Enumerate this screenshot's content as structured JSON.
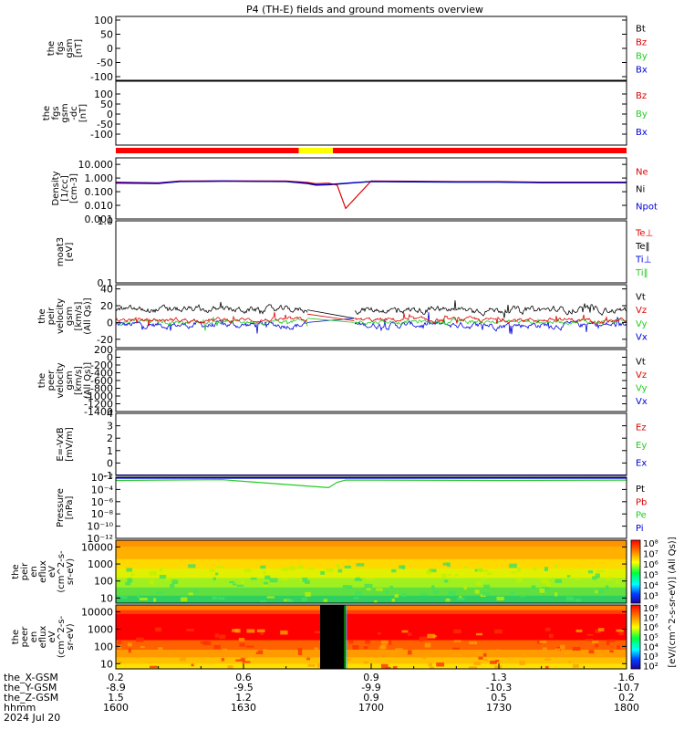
{
  "title": "P4 (TH-E) fields and ground moments overview",
  "colors": {
    "black": "#000000",
    "red": "#e00000",
    "green": "#22cc22",
    "blue": "#0000dd",
    "yellow": "#ffff00",
    "bar_red": "#ff0000"
  },
  "chart_data": [
    {
      "type": "line",
      "panel": "fgs_gsm",
      "ylabel": [
        "the",
        "fgs",
        "gsm",
        "[nT]"
      ],
      "ylim": [
        -100,
        100
      ],
      "yticks": [
        "100",
        "50",
        "0",
        "-50",
        "-100"
      ],
      "legend": [
        {
          "name": "Bt",
          "color": "#000000"
        },
        {
          "name": "Bz",
          "color": "#e00000"
        },
        {
          "name": "By",
          "color": "#22cc22"
        },
        {
          "name": "Bx",
          "color": "#0000dd"
        }
      ],
      "series": []
    },
    {
      "type": "line",
      "panel": "fgs_gsm_dc",
      "ylabel": [
        "the",
        "fgs",
        "gsm",
        "-dc",
        "[nT]"
      ],
      "ylim": [
        -130,
        130
      ],
      "yticks": [
        "100",
        "50",
        "0",
        "-50",
        "-100"
      ],
      "legend": [
        {
          "name": "Bz",
          "color": "#e00000"
        },
        {
          "name": "By",
          "color": "#22cc22"
        },
        {
          "name": "Bx",
          "color": "#0000dd"
        }
      ],
      "series": []
    },
    {
      "type": "bar",
      "panel": "mode_bar",
      "segments": [
        {
          "from": "1600",
          "to": "1643",
          "color": "#ff0000"
        },
        {
          "from": "1643",
          "to": "1651",
          "color": "#ffff00"
        },
        {
          "from": "1651",
          "to": "1800",
          "color": "#ff0000"
        }
      ]
    },
    {
      "type": "line",
      "panel": "density",
      "scale": "log",
      "ylabel": [
        "Density",
        "[1/cc]",
        "[cm-3]"
      ],
      "ylim": [
        0.001,
        30
      ],
      "yticks": [
        "10.000",
        "1.000",
        "0.100",
        "0.010",
        "0.001"
      ],
      "legend": [
        {
          "name": "Ne",
          "color": "#e00000"
        },
        {
          "name": "Ni",
          "color": "#000000"
        },
        {
          "name": "Npot",
          "color": "#0000dd"
        }
      ],
      "series": [
        {
          "color": "#000000",
          "x": [
            1600,
            1610,
            1615,
            1625,
            1640,
            1645,
            1647,
            1650,
            1700,
            1710,
            1720,
            1730,
            1740,
            1750,
            1800
          ],
          "y": [
            0.42,
            0.4,
            0.55,
            0.58,
            0.55,
            0.4,
            0.3,
            0.32,
            0.55,
            0.52,
            0.5,
            0.5,
            0.45,
            0.45,
            0.45
          ]
        },
        {
          "color": "#e00000",
          "x": [
            1600,
            1610,
            1615,
            1625,
            1640,
            1645,
            1647,
            1650,
            1652,
            1654,
            1700,
            1710,
            1720,
            1730,
            1740,
            1750,
            1800
          ],
          "y": [
            0.5,
            0.45,
            0.6,
            0.62,
            0.6,
            0.48,
            0.38,
            0.42,
            0.3,
            0.006,
            0.6,
            0.58,
            0.55,
            0.55,
            0.5,
            0.5,
            0.5
          ]
        },
        {
          "color": "#0000dd",
          "x": [
            1600,
            1610,
            1615,
            1625,
            1640,
            1645,
            1647,
            1650,
            1700,
            1710,
            1720,
            1730,
            1740,
            1750,
            1800
          ],
          "y": [
            0.44,
            0.42,
            0.56,
            0.6,
            0.57,
            0.42,
            0.32,
            0.34,
            0.57,
            0.54,
            0.52,
            0.52,
            0.47,
            0.47,
            0.47
          ]
        }
      ]
    },
    {
      "type": "line",
      "panel": "temperature",
      "scale": "log",
      "ylabel": [
        "moat3",
        "[eV]"
      ],
      "ylim": [
        0.1,
        1.0
      ],
      "yticks": [
        "1.0",
        "0.1"
      ],
      "legend": [
        {
          "name": "Te⊥",
          "color": "#e00000"
        },
        {
          "name": "Te‖",
          "color": "#000000"
        },
        {
          "name": "Ti⊥",
          "color": "#0000dd"
        },
        {
          "name": "Ti‖",
          "color": "#22cc22"
        }
      ],
      "series": []
    },
    {
      "type": "line",
      "panel": "peir_velocity",
      "ylabel": [
        "the",
        "peir",
        "velocity",
        "gsm",
        "[km/s]",
        "(All Qs)]"
      ],
      "ylim": [
        -30,
        45
      ],
      "yticks": [
        "40",
        "20",
        "0",
        "-20"
      ],
      "legend": [
        {
          "name": "Vt",
          "color": "#000000"
        },
        {
          "name": "Vz",
          "color": "#e00000"
        },
        {
          "name": "Vy",
          "color": "#22cc22"
        },
        {
          "name": "Vx",
          "color": "#0000dd"
        }
      ],
      "series": [
        {
          "name": "Vt",
          "color": "#000000",
          "mean": 15,
          "amp": 12,
          "gap": [
            1645,
            1656
          ],
          "gap_from": 15,
          "gap_to": 5
        },
        {
          "name": "Vz",
          "color": "#e00000",
          "mean": 3,
          "amp": 8,
          "gap": [
            1645,
            1656
          ],
          "gap_from": 10,
          "gap_to": 2
        },
        {
          "name": "Vy",
          "color": "#22cc22",
          "mean": 1,
          "amp": 8,
          "gap": [
            1645,
            1656
          ],
          "gap_from": 5,
          "gap_to": 0
        },
        {
          "name": "Vx",
          "color": "#0000dd",
          "mean": -3,
          "amp": 12,
          "gap": [
            1645,
            1656
          ],
          "gap_from": 0,
          "gap_to": 5
        }
      ]
    },
    {
      "type": "line",
      "panel": "peer_velocity",
      "ylabel": [
        "the",
        "peer",
        "velocity",
        "gsm",
        "[km/s]",
        "(All Qs)]"
      ],
      "ylim": [
        -1400,
        200
      ],
      "yticks": [
        "200",
        "0",
        "-200",
        "-400",
        "-600",
        "-800",
        "-1000",
        "-1200",
        "-1400"
      ],
      "legend": [
        {
          "name": "Vt",
          "color": "#000000"
        },
        {
          "name": "Vz",
          "color": "#e00000"
        },
        {
          "name": "Vy",
          "color": "#22cc22"
        },
        {
          "name": "Vx",
          "color": "#0000dd"
        }
      ],
      "series": []
    },
    {
      "type": "line",
      "panel": "efield",
      "ylabel": [
        "E=-VxB",
        "[mV/m]"
      ],
      "ylim": [
        -1,
        4
      ],
      "yticks": [
        "4",
        "3",
        "2",
        "1",
        "0",
        "-1"
      ],
      "legend": [
        {
          "name": "Ez",
          "color": "#e00000"
        },
        {
          "name": "Ey",
          "color": "#22cc22"
        },
        {
          "name": "Ex",
          "color": "#0000dd"
        }
      ],
      "series": [
        {
          "color": "#0000dd",
          "x": [
            1600,
            1800
          ],
          "y": [
            -0.97,
            -0.97
          ]
        }
      ]
    },
    {
      "type": "line",
      "panel": "pressure",
      "scale": "log",
      "ylabel": [
        "Pressure",
        "[nPa]"
      ],
      "ylim": [
        1e-12,
        0.01
      ],
      "yticks": [
        "10⁻²",
        "10⁻⁴",
        "10⁻⁶",
        "10⁻⁸",
        "10⁻¹⁰",
        "10⁻¹²"
      ],
      "legend": [
        {
          "name": "Pt",
          "color": "#000000"
        },
        {
          "name": "Pb",
          "color": "#e00000"
        },
        {
          "name": "Pe",
          "color": "#22cc22"
        },
        {
          "name": "Pi",
          "color": "#0000dd"
        }
      ],
      "series": [
        {
          "color": "#000000",
          "x": [
            1600,
            1800
          ],
          "y": [
            0.008,
            0.008
          ]
        },
        {
          "color": "#0000dd",
          "x": [
            1600,
            1800
          ],
          "y": [
            0.007,
            0.007
          ]
        },
        {
          "color": "#22cc22",
          "x": [
            1600,
            1610,
            1625,
            1650,
            1652,
            1654,
            1700,
            1730,
            1800
          ],
          "y": [
            0.003,
            0.0035,
            0.004,
            0.0002,
            0.0015,
            0.0035,
            0.0035,
            0.003,
            0.0035
          ]
        }
      ]
    },
    {
      "type": "heatmap",
      "panel": "peir_en_eflux",
      "scale": "log",
      "ylabel": [
        "the",
        "peir",
        "en",
        "eflux",
        "eV",
        "(cm^2-s-",
        "sr-eV)"
      ],
      "ylim": [
        5,
        25000
      ],
      "yticks": [
        "10000",
        "1000",
        "100",
        "10"
      ]
    },
    {
      "type": "heatmap",
      "panel": "peer_en_eflux",
      "scale": "log",
      "ylabel": [
        "the",
        "peer",
        "en",
        "eflux",
        "eV",
        "(cm^2-s-",
        "sr-eV)"
      ],
      "ylim": [
        5,
        25000
      ],
      "yticks": [
        "10000",
        "1000",
        "100",
        "10"
      ],
      "gap": [
        1648,
        1654
      ]
    }
  ],
  "colorbar": {
    "ticks_top": [
      "10⁸",
      "10⁷",
      "10⁶",
      "10⁵",
      "10⁴",
      "10³"
    ],
    "ticks_bottom": [
      "10⁸",
      "10⁷",
      "10⁶",
      "10⁵",
      "10⁴",
      "10³",
      "10²"
    ],
    "label": "[eV/(cm^2-s-sr-eV)] (All Qs)]"
  },
  "x_axis": {
    "range": [
      1600,
      1800
    ],
    "rows": [
      {
        "label": "the_X-GSM",
        "values": [
          "0.2",
          "0.6",
          "0.9",
          "1.3",
          "1.6"
        ]
      },
      {
        "label": "the_Y-GSM",
        "values": [
          "-8.9",
          "-9.5",
          "-9.9",
          "-10.3",
          "-10.7"
        ]
      },
      {
        "label": "the_Z-GSM",
        "values": [
          "1.5",
          "1.2",
          "0.9",
          "0.5",
          "0.2"
        ]
      },
      {
        "label": "hhmm",
        "values": [
          "1600",
          "1630",
          "1700",
          "1730",
          "1800"
        ]
      }
    ],
    "date": "2024 Jul 20"
  }
}
